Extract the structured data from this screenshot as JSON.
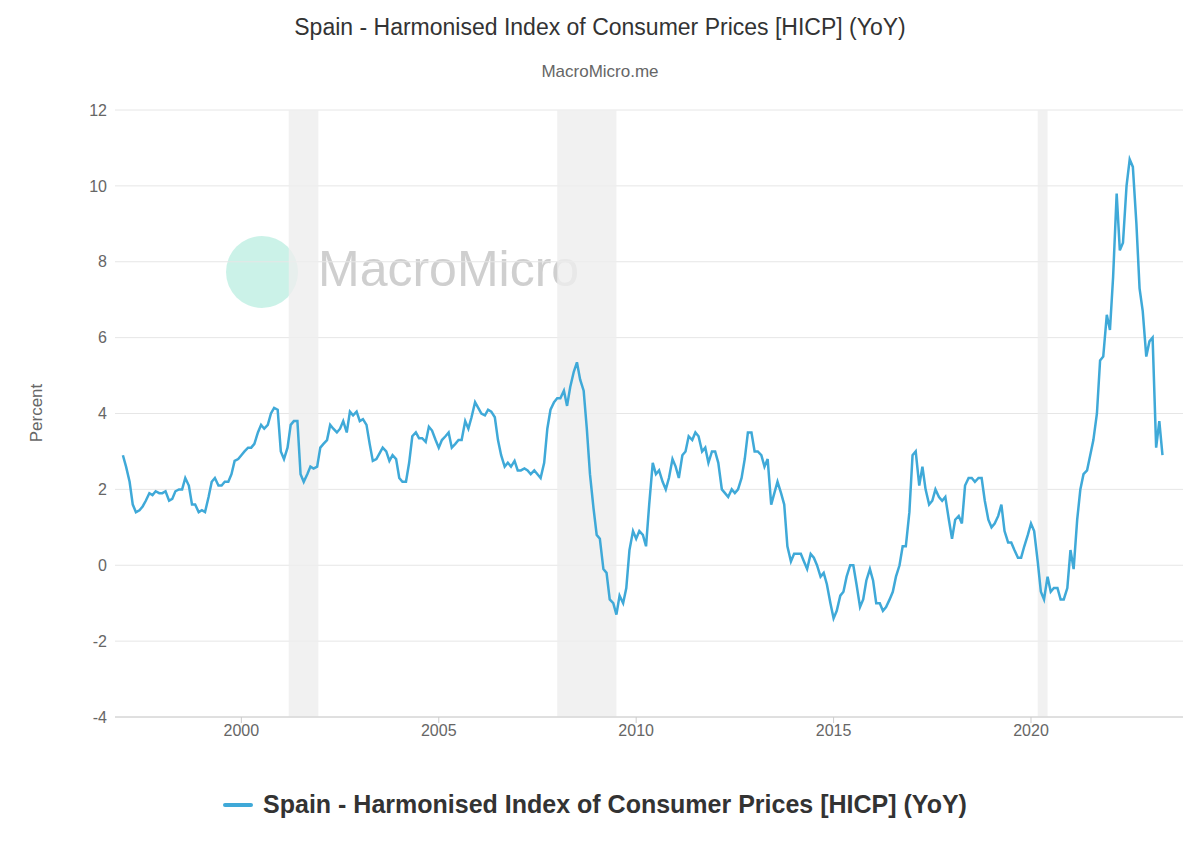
{
  "chart_data": {
    "type": "line",
    "title": "Spain - Harmonised Index of Consumer Prices [HICP] (YoY)",
    "subtitle": "MacroMicro.me",
    "watermark": "MacroMicro",
    "ylabel": "Percent",
    "legend": "bottom",
    "grid": true,
    "xlim": [
      1996.8,
      2023.85
    ],
    "xticks": [
      2000,
      2005,
      2010,
      2015,
      2020
    ],
    "ylim": [
      -4,
      12
    ],
    "yticks": [
      -4,
      -2,
      0,
      2,
      4,
      6,
      8,
      10,
      12
    ],
    "shaded_ranges": [
      [
        2001.2,
        2001.95
      ],
      [
        2008.0,
        2009.5
      ],
      [
        2020.17,
        2020.42
      ]
    ],
    "x": [
      1997,
      1997.08,
      1997.17,
      1997.25,
      1997.33,
      1997.42,
      1997.5,
      1997.58,
      1997.67,
      1997.75,
      1997.83,
      1997.92,
      1998,
      1998.08,
      1998.17,
      1998.25,
      1998.33,
      1998.42,
      1998.5,
      1998.58,
      1998.67,
      1998.75,
      1998.83,
      1998.92,
      1999,
      1999.08,
      1999.17,
      1999.25,
      1999.33,
      1999.42,
      1999.5,
      1999.58,
      1999.67,
      1999.75,
      1999.83,
      1999.92,
      2000,
      2000.08,
      2000.17,
      2000.25,
      2000.33,
      2000.42,
      2000.5,
      2000.58,
      2000.67,
      2000.75,
      2000.83,
      2000.92,
      2001,
      2001.08,
      2001.17,
      2001.25,
      2001.33,
      2001.42,
      2001.5,
      2001.58,
      2001.67,
      2001.75,
      2001.83,
      2001.92,
      2002,
      2002.08,
      2002.17,
      2002.25,
      2002.33,
      2002.42,
      2002.5,
      2002.58,
      2002.67,
      2002.75,
      2002.83,
      2002.92,
      2003,
      2003.08,
      2003.17,
      2003.25,
      2003.33,
      2003.42,
      2003.5,
      2003.58,
      2003.67,
      2003.75,
      2003.83,
      2003.92,
      2004,
      2004.08,
      2004.17,
      2004.25,
      2004.33,
      2004.42,
      2004.5,
      2004.58,
      2004.67,
      2004.75,
      2004.83,
      2004.92,
      2005,
      2005.08,
      2005.17,
      2005.25,
      2005.33,
      2005.42,
      2005.5,
      2005.58,
      2005.67,
      2005.75,
      2005.83,
      2005.92,
      2006,
      2006.08,
      2006.17,
      2006.25,
      2006.33,
      2006.42,
      2006.5,
      2006.58,
      2006.67,
      2006.75,
      2006.83,
      2006.92,
      2007,
      2007.08,
      2007.17,
      2007.25,
      2007.33,
      2007.42,
      2007.5,
      2007.58,
      2007.67,
      2007.75,
      2007.83,
      2007.92,
      2008,
      2008.08,
      2008.17,
      2008.25,
      2008.33,
      2008.42,
      2008.5,
      2008.58,
      2008.67,
      2008.75,
      2008.83,
      2008.92,
      2009,
      2009.08,
      2009.17,
      2009.25,
      2009.33,
      2009.42,
      2009.5,
      2009.58,
      2009.67,
      2009.75,
      2009.83,
      2009.92,
      2010,
      2010.08,
      2010.17,
      2010.25,
      2010.33,
      2010.42,
      2010.5,
      2010.58,
      2010.67,
      2010.75,
      2010.83,
      2010.92,
      2011,
      2011.08,
      2011.17,
      2011.25,
      2011.33,
      2011.42,
      2011.5,
      2011.58,
      2011.67,
      2011.75,
      2011.83,
      2011.92,
      2012,
      2012.08,
      2012.17,
      2012.25,
      2012.33,
      2012.42,
      2012.5,
      2012.58,
      2012.67,
      2012.75,
      2012.83,
      2012.92,
      2013,
      2013.08,
      2013.17,
      2013.25,
      2013.33,
      2013.42,
      2013.5,
      2013.58,
      2013.67,
      2013.75,
      2013.83,
      2013.92,
      2014,
      2014.08,
      2014.17,
      2014.25,
      2014.33,
      2014.42,
      2014.5,
      2014.58,
      2014.67,
      2014.75,
      2014.83,
      2014.92,
      2015,
      2015.08,
      2015.17,
      2015.25,
      2015.33,
      2015.42,
      2015.5,
      2015.58,
      2015.67,
      2015.75,
      2015.83,
      2015.92,
      2016,
      2016.08,
      2016.17,
      2016.25,
      2016.33,
      2016.42,
      2016.5,
      2016.58,
      2016.67,
      2016.75,
      2016.83,
      2016.92,
      2017,
      2017.08,
      2017.17,
      2017.25,
      2017.33,
      2017.42,
      2017.5,
      2017.58,
      2017.67,
      2017.75,
      2017.83,
      2017.92,
      2018,
      2018.08,
      2018.17,
      2018.25,
      2018.33,
      2018.42,
      2018.5,
      2018.58,
      2018.67,
      2018.75,
      2018.83,
      2018.92,
      2019,
      2019.08,
      2019.17,
      2019.25,
      2019.33,
      2019.42,
      2019.5,
      2019.58,
      2019.67,
      2019.75,
      2019.83,
      2019.92,
      2020,
      2020.08,
      2020.17,
      2020.25,
      2020.33,
      2020.42,
      2020.5,
      2020.58,
      2020.67,
      2020.75,
      2020.83,
      2020.92,
      2021,
      2021.08,
      2021.17,
      2021.25,
      2021.33,
      2021.42,
      2021.5,
      2021.58,
      2021.67,
      2021.75,
      2021.83,
      2021.92,
      2022,
      2022.08,
      2022.17,
      2022.25,
      2022.33,
      2022.42,
      2022.5,
      2022.58,
      2022.67,
      2022.75,
      2022.83,
      2022.92,
      2023,
      2023.08,
      2023.17,
      2023.25,
      2023.33
    ],
    "series": [
      {
        "name": "Spain - Harmonised Index of Consumer Prices [HICP] (YoY)",
        "color": "#3fa9d8",
        "values": [
          2.9,
          2.6,
          2.2,
          1.6,
          1.4,
          1.45,
          1.55,
          1.7,
          1.9,
          1.85,
          1.95,
          1.9,
          1.9,
          1.95,
          1.7,
          1.75,
          1.95,
          2.0,
          2.0,
          2.3,
          2.1,
          1.6,
          1.6,
          1.4,
          1.45,
          1.4,
          1.8,
          2.2,
          2.3,
          2.1,
          2.1,
          2.2,
          2.2,
          2.4,
          2.75,
          2.8,
          2.9,
          3.0,
          3.1,
          3.1,
          3.2,
          3.5,
          3.7,
          3.6,
          3.7,
          4.0,
          4.15,
          4.1,
          3.0,
          2.8,
          3.1,
          3.7,
          3.8,
          3.8,
          2.4,
          2.2,
          2.4,
          2.6,
          2.55,
          2.6,
          3.1,
          3.2,
          3.3,
          3.7,
          3.6,
          3.5,
          3.6,
          3.8,
          3.5,
          4.05,
          3.95,
          4.05,
          3.8,
          3.85,
          3.7,
          3.2,
          2.75,
          2.8,
          2.95,
          3.1,
          3.0,
          2.75,
          2.9,
          2.8,
          2.3,
          2.2,
          2.2,
          2.7,
          3.4,
          3.5,
          3.35,
          3.35,
          3.25,
          3.65,
          3.55,
          3.3,
          3.1,
          3.3,
          3.4,
          3.5,
          3.1,
          3.2,
          3.3,
          3.3,
          3.8,
          3.6,
          3.9,
          4.3,
          4.15,
          4.0,
          3.95,
          4.1,
          4.05,
          3.9,
          3.3,
          2.9,
          2.6,
          2.7,
          2.6,
          2.75,
          2.5,
          2.5,
          2.55,
          2.5,
          2.4,
          2.5,
          2.4,
          2.3,
          2.7,
          3.6,
          4.1,
          4.3,
          4.4,
          4.4,
          4.6,
          4.2,
          4.7,
          5.1,
          5.35,
          4.9,
          4.6,
          3.6,
          2.4,
          1.5,
          0.8,
          0.7,
          -0.1,
          -0.2,
          -0.9,
          -1.0,
          -1.3,
          -0.8,
          -1.0,
          -0.6,
          0.4,
          0.9,
          0.7,
          0.9,
          0.8,
          0.5,
          1.6,
          2.7,
          2.4,
          2.5,
          2.2,
          2.0,
          2.3,
          2.8,
          2.6,
          2.3,
          2.9,
          3.0,
          3.4,
          3.3,
          3.5,
          3.4,
          3.0,
          3.1,
          2.7,
          3.0,
          3.0,
          2.7,
          2.0,
          1.9,
          1.8,
          2.0,
          1.9,
          2.0,
          2.3,
          2.8,
          3.5,
          3.5,
          3.0,
          3.0,
          2.9,
          2.6,
          2.8,
          1.6,
          1.9,
          2.2,
          1.9,
          1.6,
          0.5,
          0.1,
          0.3,
          0.3,
          0.3,
          0.1,
          -0.1,
          0.3,
          0.2,
          0.0,
          -0.3,
          -0.2,
          -0.5,
          -1.0,
          -1.4,
          -1.2,
          -0.8,
          -0.7,
          -0.3,
          0.0,
          0.0,
          -0.5,
          -1.1,
          -0.9,
          -0.4,
          -0.1,
          -0.4,
          -1.0,
          -1.0,
          -1.2,
          -1.1,
          -0.9,
          -0.7,
          -0.3,
          0.0,
          0.5,
          0.5,
          1.4,
          2.9,
          3.0,
          2.1,
          2.6,
          2.0,
          1.6,
          1.7,
          2.0,
          1.8,
          1.7,
          1.8,
          1.2,
          0.7,
          1.2,
          1.3,
          1.1,
          2.1,
          2.3,
          2.3,
          2.2,
          2.3,
          2.3,
          1.7,
          1.2,
          1.0,
          1.1,
          1.3,
          1.6,
          0.9,
          0.6,
          0.6,
          0.4,
          0.2,
          0.2,
          0.5,
          0.8,
          1.1,
          0.9,
          0.1,
          -0.7,
          -0.9,
          -0.3,
          -0.7,
          -0.6,
          -0.6,
          -0.9,
          -0.9,
          -0.6,
          0.4,
          -0.1,
          1.2,
          2.0,
          2.4,
          2.5,
          2.9,
          3.3,
          4.0,
          5.4,
          5.5,
          6.6,
          6.2,
          7.6,
          9.8,
          8.3,
          8.5,
          10.0,
          10.7,
          10.5,
          9.0,
          7.3,
          6.7,
          5.5,
          5.9,
          6.0,
          3.1,
          3.8,
          2.9
        ]
      }
    ]
  }
}
